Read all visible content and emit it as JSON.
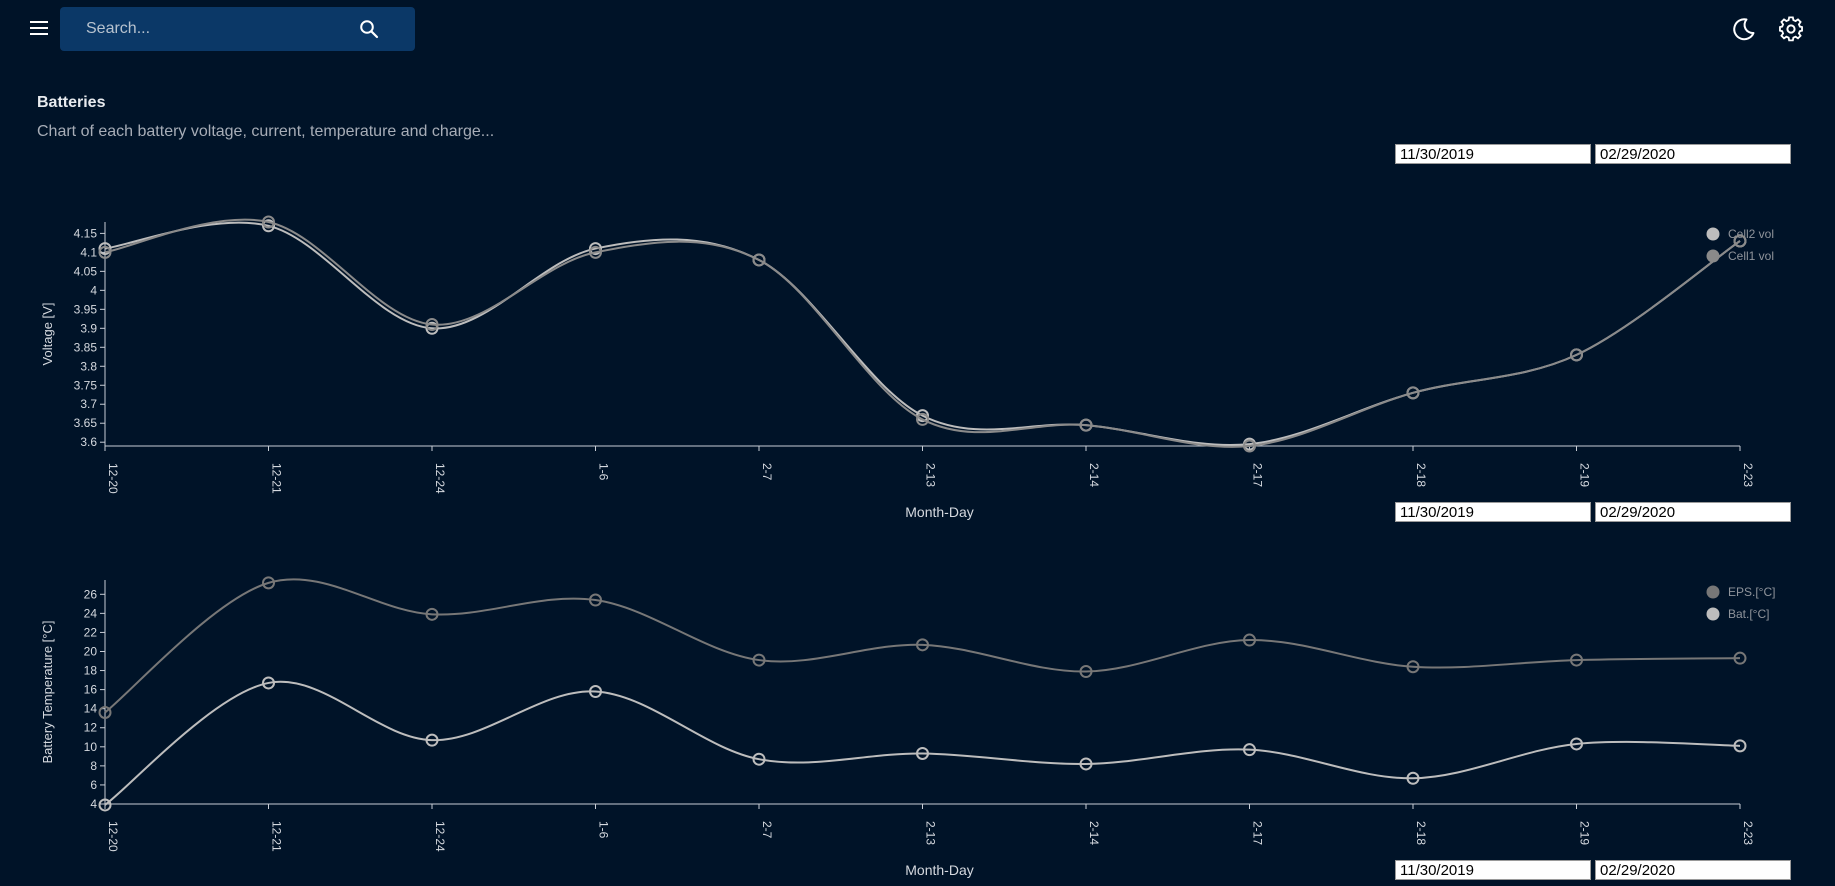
{
  "search": {
    "placeholder": "Search..."
  },
  "page": {
    "title": "Batteries",
    "subtitle": "Chart of each battery voltage, current, temperature and charge..."
  },
  "icons": {
    "menu": "menu-icon",
    "search": "search-icon",
    "theme": "moon-icon",
    "settings": "gear-icon"
  },
  "colors": {
    "background": "#001328",
    "search_bg": "#0b3867",
    "series_light": "#bdbdbd",
    "series_dark": "#8a8a8a"
  },
  "date_ranges": [
    {
      "start": "11/30/2019",
      "end": "02/29/2020"
    },
    {
      "start": "11/30/2019",
      "end": "02/29/2020"
    },
    {
      "start": "11/30/2019",
      "end": "02/29/2020"
    }
  ],
  "chart_data": [
    {
      "type": "line",
      "categories": [
        "12-20",
        "12-21",
        "12-24",
        "1-6",
        "2-7",
        "2-13",
        "2-14",
        "2-17",
        "2-18",
        "2-19",
        "2-23"
      ],
      "xlabel": "Month-Day",
      "ylabel": "Voltage [V]",
      "yticks": [
        3.6,
        3.65,
        3.7,
        3.75,
        3.8,
        3.85,
        3.9,
        3.95,
        4,
        4.05,
        4.1,
        4.15
      ],
      "ylim": [
        3.59,
        4.18
      ],
      "legend_position": "top-right",
      "series": [
        {
          "name": "Cell2 vol",
          "color": "#bdbdbd",
          "values": [
            4.11,
            4.17,
            3.9,
            4.11,
            4.08,
            3.67,
            3.645,
            3.595,
            3.73,
            3.83,
            4.13
          ]
        },
        {
          "name": "Cell1 vol",
          "color": "#8a8a8a",
          "values": [
            4.1,
            4.18,
            3.91,
            4.1,
            4.08,
            3.66,
            3.645,
            3.59,
            3.73,
            3.83,
            4.13
          ]
        }
      ]
    },
    {
      "type": "line",
      "categories": [
        "12-20",
        "12-21",
        "12-24",
        "1-6",
        "2-7",
        "2-13",
        "2-14",
        "2-17",
        "2-18",
        "2-19",
        "2-23"
      ],
      "xlabel": "Month-Day",
      "ylabel": "Battery Temperature [°C]",
      "yticks": [
        4,
        6,
        8,
        10,
        12,
        14,
        16,
        18,
        20,
        22,
        24,
        26
      ],
      "ylim": [
        4,
        27.5
      ],
      "legend_position": "top-right",
      "series": [
        {
          "name": "EPS.[°C]",
          "color": "#777777",
          "values": [
            13.6,
            27.2,
            23.9,
            25.4,
            19.1,
            20.7,
            17.9,
            21.2,
            18.4,
            19.1,
            19.3
          ]
        },
        {
          "name": "Bat.[°C]",
          "color": "#bdbdbd",
          "values": [
            3.9,
            16.7,
            10.7,
            15.8,
            8.7,
            9.3,
            8.2,
            9.7,
            6.7,
            10.3,
            10.1
          ]
        }
      ]
    }
  ]
}
